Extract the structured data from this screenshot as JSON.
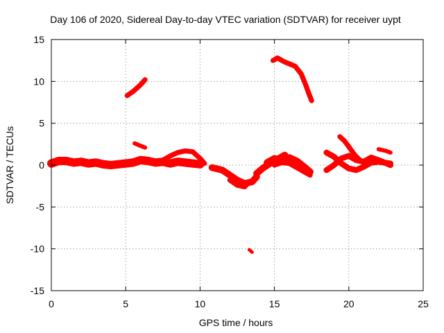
{
  "chart_data": {
    "type": "scatter",
    "title": "Day 106 of 2020, Sidereal Day-to-day VTEC variation (SDTVAR) for receiver uypt",
    "xlabel": "GPS time / hours",
    "ylabel": "SDTVAR / TECUs",
    "xlim": [
      0,
      25
    ],
    "ylim": [
      -15,
      15
    ],
    "xticks": [
      0,
      5,
      10,
      15,
      20,
      25
    ],
    "yticks": [
      -15,
      -10,
      -5,
      0,
      5,
      10,
      15
    ],
    "grid": true,
    "color": "#ff0000",
    "series": [
      {
        "name": "band-early",
        "band": 0.5,
        "points": [
          [
            0.0,
            0.2
          ],
          [
            0.5,
            0.5
          ],
          [
            1.0,
            0.5
          ],
          [
            1.5,
            0.3
          ],
          [
            2.0,
            0.4
          ],
          [
            2.5,
            0.2
          ],
          [
            3.0,
            0.3
          ],
          [
            3.5,
            0.1
          ],
          [
            4.0,
            0.0
          ],
          [
            4.5,
            0.1
          ],
          [
            5.0,
            0.2
          ],
          [
            5.5,
            0.3
          ],
          [
            6.0,
            0.6
          ],
          [
            6.5,
            0.5
          ],
          [
            7.0,
            0.3
          ],
          [
            7.5,
            0.4
          ],
          [
            8.0,
            0.2
          ],
          [
            8.5,
            0.4
          ],
          [
            9.0,
            0.3
          ],
          [
            9.5,
            0.2
          ],
          [
            10.0,
            0.1
          ]
        ]
      },
      {
        "name": "arc-9h",
        "band": 0.3,
        "points": [
          [
            7.2,
            0.3
          ],
          [
            8.0,
            1.1
          ],
          [
            8.5,
            1.5
          ],
          [
            9.0,
            1.7
          ],
          [
            9.5,
            1.6
          ],
          [
            10.0,
            0.8
          ],
          [
            10.3,
            0.2
          ]
        ]
      },
      {
        "name": "dip-13h",
        "band": 0.4,
        "points": [
          [
            10.8,
            -0.3
          ],
          [
            11.5,
            -0.6
          ],
          [
            12.0,
            -1.2
          ],
          [
            12.5,
            -1.8
          ],
          [
            13.0,
            -2.2
          ],
          [
            13.5,
            -2.0
          ],
          [
            13.8,
            -1.4
          ]
        ]
      },
      {
        "name": "dip-13h-upper",
        "band": 0.3,
        "points": [
          [
            12.0,
            -1.8
          ],
          [
            12.5,
            -2.4
          ],
          [
            13.0,
            -2.6
          ],
          [
            13.3,
            -2.0
          ]
        ]
      },
      {
        "name": "rise-15h",
        "band": 0.4,
        "points": [
          [
            13.8,
            -1.0
          ],
          [
            14.2,
            -0.4
          ],
          [
            14.7,
            0.2
          ],
          [
            15.2,
            0.7
          ],
          [
            15.7,
            1.2
          ]
        ]
      },
      {
        "name": "band-15-17h-a",
        "band": 0.4,
        "points": [
          [
            14.5,
            0.3
          ],
          [
            15.0,
            0.8
          ],
          [
            15.5,
            0.6
          ],
          [
            16.0,
            0.9
          ],
          [
            16.5,
            0.5
          ],
          [
            17.0,
            -0.2
          ],
          [
            17.4,
            -0.8
          ]
        ]
      },
      {
        "name": "band-15-17h-b",
        "band": 0.3,
        "points": [
          [
            15.0,
            0.0
          ],
          [
            15.5,
            0.3
          ],
          [
            16.0,
            0.2
          ],
          [
            16.5,
            -0.3
          ],
          [
            17.0,
            -0.8
          ],
          [
            17.4,
            -1.2
          ]
        ]
      },
      {
        "name": "band-20h-a",
        "band": 0.35,
        "points": [
          [
            18.5,
            1.5
          ],
          [
            19.0,
            1.0
          ],
          [
            19.5,
            0.2
          ],
          [
            20.0,
            -0.4
          ],
          [
            20.5,
            -0.6
          ],
          [
            21.0,
            -0.2
          ],
          [
            21.5,
            0.3
          ],
          [
            22.0,
            0.4
          ],
          [
            22.8,
            0.2
          ]
        ]
      },
      {
        "name": "band-20h-b",
        "band": 0.35,
        "points": [
          [
            18.5,
            -0.6
          ],
          [
            19.0,
            0.0
          ],
          [
            19.5,
            0.8
          ],
          [
            20.0,
            1.1
          ],
          [
            20.5,
            0.6
          ],
          [
            21.0,
            0.4
          ],
          [
            21.5,
            0.9
          ],
          [
            22.0,
            0.6
          ],
          [
            22.8,
            0.0
          ]
        ]
      },
      {
        "name": "peak-20h",
        "band": 0.3,
        "points": [
          [
            19.4,
            3.4
          ],
          [
            19.7,
            2.9
          ],
          [
            20.0,
            2.2
          ],
          [
            20.4,
            1.2
          ],
          [
            20.8,
            0.5
          ]
        ]
      },
      {
        "name": "patch-22h",
        "band": 0.25,
        "points": [
          [
            22.0,
            1.9
          ],
          [
            22.5,
            1.7
          ],
          [
            22.8,
            1.5
          ]
        ]
      },
      {
        "name": "segment-6h-high",
        "band": 0.3,
        "points": [
          [
            5.1,
            8.3
          ],
          [
            5.5,
            8.8
          ],
          [
            6.0,
            9.6
          ],
          [
            6.3,
            10.2
          ]
        ]
      },
      {
        "name": "segment-6h-low",
        "band": 0.25,
        "points": [
          [
            5.6,
            2.6
          ],
          [
            6.0,
            2.3
          ],
          [
            6.3,
            2.1
          ]
        ]
      },
      {
        "name": "segment-15-17h-high",
        "band": 0.3,
        "points": [
          [
            14.9,
            12.5
          ],
          [
            15.2,
            12.8
          ],
          [
            15.6,
            12.4
          ],
          [
            16.0,
            12.1
          ],
          [
            16.4,
            11.8
          ],
          [
            16.8,
            10.9
          ],
          [
            17.1,
            9.6
          ],
          [
            17.3,
            8.6
          ],
          [
            17.5,
            7.7
          ]
        ]
      },
      {
        "name": "point-13h-low",
        "band": 0.2,
        "points": [
          [
            13.3,
            -10.1
          ],
          [
            13.5,
            -10.4
          ]
        ]
      }
    ]
  }
}
